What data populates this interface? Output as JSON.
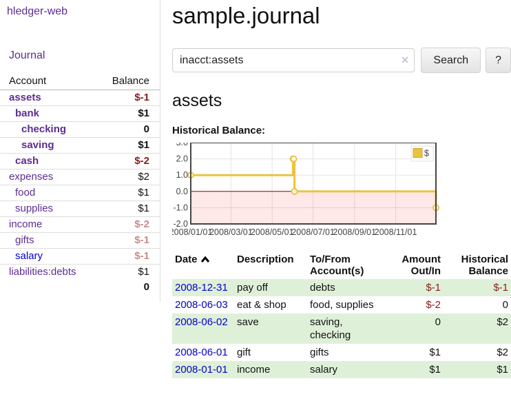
{
  "sidebar": {
    "brand": "hledger-web",
    "nav": {
      "journal": "Journal"
    },
    "accounts_table": {
      "headers": {
        "account": "Account",
        "balance": "Balance"
      },
      "rows": [
        {
          "name": "assets",
          "depth": 1,
          "balance": "$-1",
          "bold": true,
          "neg": "dark"
        },
        {
          "name": "bank",
          "depth": 2,
          "balance": "$1",
          "bold": true,
          "neg": "none"
        },
        {
          "name": "checking",
          "depth": 3,
          "balance": "0",
          "bold": true,
          "neg": "none"
        },
        {
          "name": "saving",
          "depth": 3,
          "balance": "$1",
          "bold": true,
          "neg": "none"
        },
        {
          "name": "cash",
          "depth": 2,
          "balance": "$-2",
          "bold": true,
          "neg": "dark"
        },
        {
          "name": "expenses",
          "depth": 1,
          "balance": "$2",
          "bold": false,
          "neg": "none"
        },
        {
          "name": "food",
          "depth": 2,
          "balance": "$1",
          "bold": false,
          "neg": "none"
        },
        {
          "name": "supplies",
          "depth": 2,
          "balance": "$1",
          "bold": false,
          "neg": "none"
        },
        {
          "name": "income",
          "depth": 1,
          "balance": "$-2",
          "bold": false,
          "neg": "light"
        },
        {
          "name": "gifts",
          "depth": 2,
          "balance": "$-1",
          "bold": false,
          "neg": "light"
        },
        {
          "name": "salary",
          "depth": 2,
          "balance": "$-1",
          "bold": false,
          "neg": "light",
          "blue": true
        },
        {
          "name": "liabilities:debts",
          "depth": 1,
          "balance": "$1",
          "bold": false,
          "neg": "none"
        }
      ],
      "total": "0"
    }
  },
  "header": {
    "title": "sample.journal"
  },
  "search": {
    "value": "inacct:assets",
    "clear_icon": "×",
    "button_label": "Search",
    "help_label": "?"
  },
  "account_page": {
    "heading": "assets",
    "chart_label": "Historical Balance:"
  },
  "chart_data": {
    "type": "line",
    "step": true,
    "title": "Historical Balance",
    "legend": {
      "label": "$",
      "position": "top-right"
    },
    "series": [
      {
        "name": "$",
        "color": "#edc240",
        "points": [
          {
            "date": "2008-01-01",
            "value": 1,
            "xf": 0.0
          },
          {
            "date": "2008-06-01",
            "value": 2,
            "xf": 0.417
          },
          {
            "date": "2008-06-02",
            "value": 2,
            "xf": 0.42
          },
          {
            "date": "2008-06-03",
            "value": 0,
            "xf": 0.423
          },
          {
            "date": "2008-12-31",
            "value": -1,
            "xf": 1.0
          }
        ]
      }
    ],
    "x_ticks": [
      {
        "label": "2008/01/01",
        "f": 0.0
      },
      {
        "label": "2008/03/01",
        "f": 0.164
      },
      {
        "label": "2008/05/01",
        "f": 0.332
      },
      {
        "label": "2008/07/01",
        "f": 0.499
      },
      {
        "label": "2008/09/01",
        "f": 0.668
      },
      {
        "label": "2008/11/01",
        "f": 0.836
      }
    ],
    "y_ticks": [
      {
        "label": "3.0",
        "v": 3
      },
      {
        "label": "2.0",
        "v": 2
      },
      {
        "label": "1.0",
        "v": 1
      },
      {
        "label": "0.0",
        "v": 0
      },
      {
        "label": "-1.0",
        "v": -1
      },
      {
        "label": "-2.0",
        "v": -2
      }
    ],
    "ylim": [
      -2,
      3
    ],
    "x_range": [
      "2008-01-01",
      "2008-12-31"
    ],
    "grid": true,
    "colors": {
      "line": "#edc240",
      "marker_fill": "#ffffff",
      "border": "#444444",
      "gridline": "#e3e3e3",
      "zero_line": "#a40000",
      "negative_region": "rgba(255,80,80,0.13)"
    }
  },
  "transactions": {
    "headers": {
      "date": "Date",
      "description": "Description",
      "accounts": "To/From Account(s)",
      "amount": "Amount Out/In",
      "balance": "Historical Balance"
    },
    "rows": [
      {
        "date": "2008-12-31",
        "description": "pay off",
        "accounts": "debts",
        "amount": "$-1",
        "balance": "$-1",
        "amount_neg": true,
        "balance_neg": true
      },
      {
        "date": "2008-06-03",
        "description": "eat & shop",
        "accounts": "food, supplies",
        "amount": "$-2",
        "balance": "0",
        "amount_neg": true,
        "balance_neg": false
      },
      {
        "date": "2008-06-02",
        "description": "save",
        "accounts": "saving, checking",
        "amount": "0",
        "balance": "$2",
        "amount_neg": false,
        "balance_neg": false
      },
      {
        "date": "2008-06-01",
        "description": "gift",
        "accounts": "gifts",
        "amount": "$1",
        "balance": "$2",
        "amount_neg": false,
        "balance_neg": false
      },
      {
        "date": "2008-01-01",
        "description": "income",
        "accounts": "salary",
        "amount": "$1",
        "balance": "$1",
        "amount_neg": false,
        "balance_neg": false
      }
    ]
  }
}
